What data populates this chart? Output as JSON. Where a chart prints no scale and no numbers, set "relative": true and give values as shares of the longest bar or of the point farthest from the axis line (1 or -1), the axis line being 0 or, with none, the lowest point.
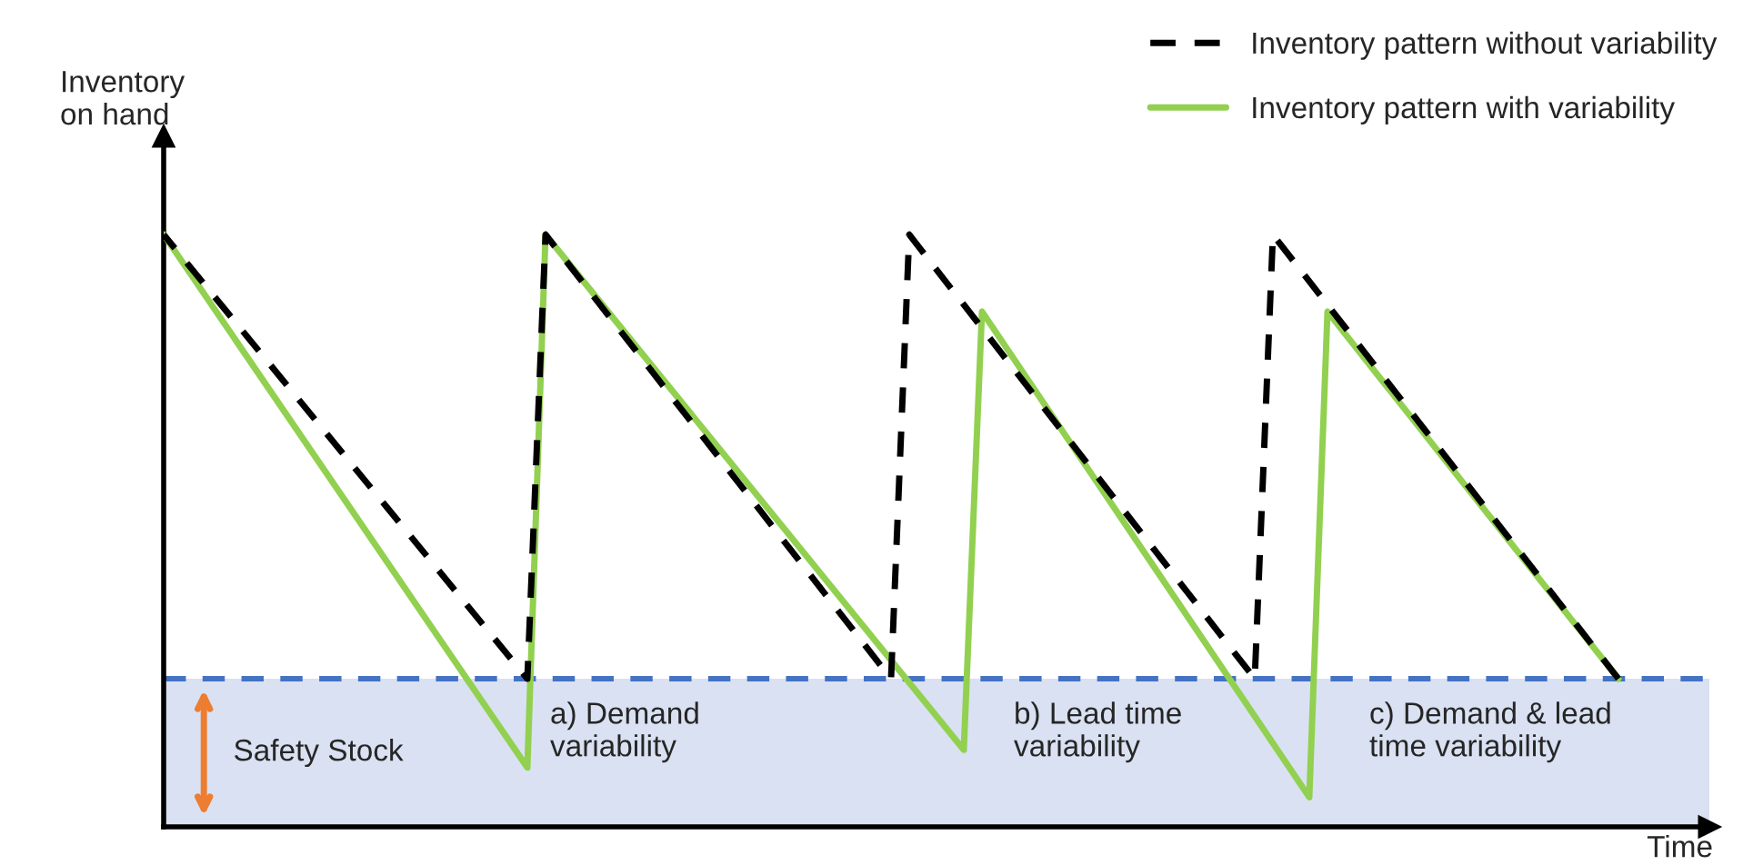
{
  "chart_data": {
    "type": "line",
    "relative": true,
    "xlabel": "Time",
    "ylabel": "Inventory\non hand",
    "categories": [
      null,
      null,
      null,
      null,
      null,
      null,
      null,
      null,
      null,
      null,
      null,
      null,
      null,
      null,
      null,
      null,
      null,
      null,
      null,
      null,
      null,
      null,
      null,
      null,
      null,
      null,
      null,
      null,
      null,
      null,
      null,
      null,
      null,
      null,
      null,
      null,
      null,
      null,
      null,
      null,
      null,
      null,
      null,
      null,
      null,
      null,
      null,
      null,
      null,
      null,
      null,
      null,
      null,
      null,
      null,
      null,
      null,
      null,
      null,
      null,
      null,
      null,
      null,
      null,
      null,
      null,
      null,
      null,
      null,
      null,
      null,
      null,
      null,
      null,
      null,
      null,
      null,
      null,
      null,
      null,
      null,
      null,
      null,
      null,
      null,
      null
    ],
    "legend": "top right",
    "series": [
      {
        "name": "Inventory pattern without variability",
        "color": "#000000",
        "line_style": "dashed",
        "values": [
          1,
          null,
          null,
          null,
          null,
          null,
          null,
          null,
          null,
          null,
          null,
          null,
          null,
          null,
          null,
          null,
          null,
          null,
          null,
          null,
          0.25,
          1,
          null,
          null,
          null,
          null,
          null,
          null,
          null,
          null,
          null,
          null,
          null,
          null,
          null,
          null,
          null,
          null,
          null,
          null,
          0.25,
          1,
          null,
          null,
          null,
          null,
          null,
          null,
          null,
          null,
          null,
          null,
          null,
          null,
          null,
          null,
          null,
          null,
          null,
          null,
          0.25,
          1,
          null,
          null,
          null,
          null,
          null,
          null,
          null,
          null,
          null,
          null,
          null,
          null,
          null,
          null,
          null,
          null,
          null,
          null,
          0.25,
          null,
          null,
          null,
          null,
          null
        ]
      },
      {
        "name": "Inventory pattern with variability",
        "color": "#92d050",
        "line_style": "solid",
        "values": [
          1,
          null,
          null,
          null,
          null,
          null,
          null,
          null,
          null,
          null,
          null,
          null,
          null,
          null,
          null,
          null,
          null,
          null,
          null,
          null,
          0.1,
          1,
          null,
          null,
          null,
          null,
          null,
          null,
          null,
          null,
          null,
          null,
          null,
          null,
          null,
          null,
          null,
          null,
          null,
          null,
          null,
          null,
          null,
          null,
          0.13,
          0.87,
          null,
          null,
          null,
          null,
          null,
          null,
          null,
          null,
          null,
          null,
          null,
          null,
          null,
          null,
          null,
          null,
          null,
          0.05,
          0.87,
          null,
          null,
          null,
          null,
          null,
          null,
          null,
          null,
          null,
          null,
          null,
          null,
          null,
          null,
          null,
          0.25,
          null,
          null,
          null,
          null,
          null
        ]
      }
    ],
    "bands": [
      {
        "axis": "y",
        "from": 0,
        "to": 0.25,
        "label": "Safety Stock",
        "color": "#d9e1f2"
      }
    ],
    "ref_lines": [
      {
        "axis": "y",
        "value": 0.25,
        "color": "#4472c4",
        "line_style": "dashed"
      }
    ],
    "annotations": [
      "a) Demand\nvariability",
      "b) Lead time\nvariability",
      "c) Demand & lead\ntime variability"
    ]
  }
}
